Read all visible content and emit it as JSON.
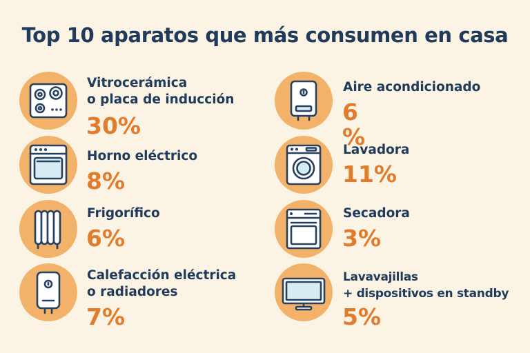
{
  "title": "Top 10 aparatos que más consumen en casa",
  "colors": {
    "background": "#fbf3e4",
    "title": "#1f3a5a",
    "percent": "#e07c2c",
    "circle": "#f2b269"
  },
  "left": [
    {
      "icon": "cooktop-icon",
      "label_lines": [
        "Vitrocerámica",
        "o placa de inducción"
      ],
      "percent": "30%"
    },
    {
      "icon": "oven-icon",
      "label_lines": [
        "Horno eléctrico"
      ],
      "percent": "8%"
    },
    {
      "icon": "radiator-icon",
      "label_lines": [
        "Frigorífico"
      ],
      "percent": "6%"
    },
    {
      "icon": "water-heater-icon",
      "label_lines": [
        "Calefacción eléctrica",
        "o radiadores"
      ],
      "percent": "7%"
    }
  ],
  "right": [
    {
      "icon": "boiler-icon",
      "label_lines": [
        "Aire acondicionado"
      ],
      "percent": "6 %"
    },
    {
      "icon": "washing-machine-icon",
      "label_lines": [
        "Lavadora"
      ],
      "percent": "11%"
    },
    {
      "icon": "dishwasher-icon",
      "label_lines": [
        "Secadora"
      ],
      "percent": "3%"
    },
    {
      "icon": "tv-monitor-icon",
      "label_lines": [
        "Lavavajillas",
        "+ dispositivos en standby"
      ],
      "percent": "5%"
    }
  ]
}
